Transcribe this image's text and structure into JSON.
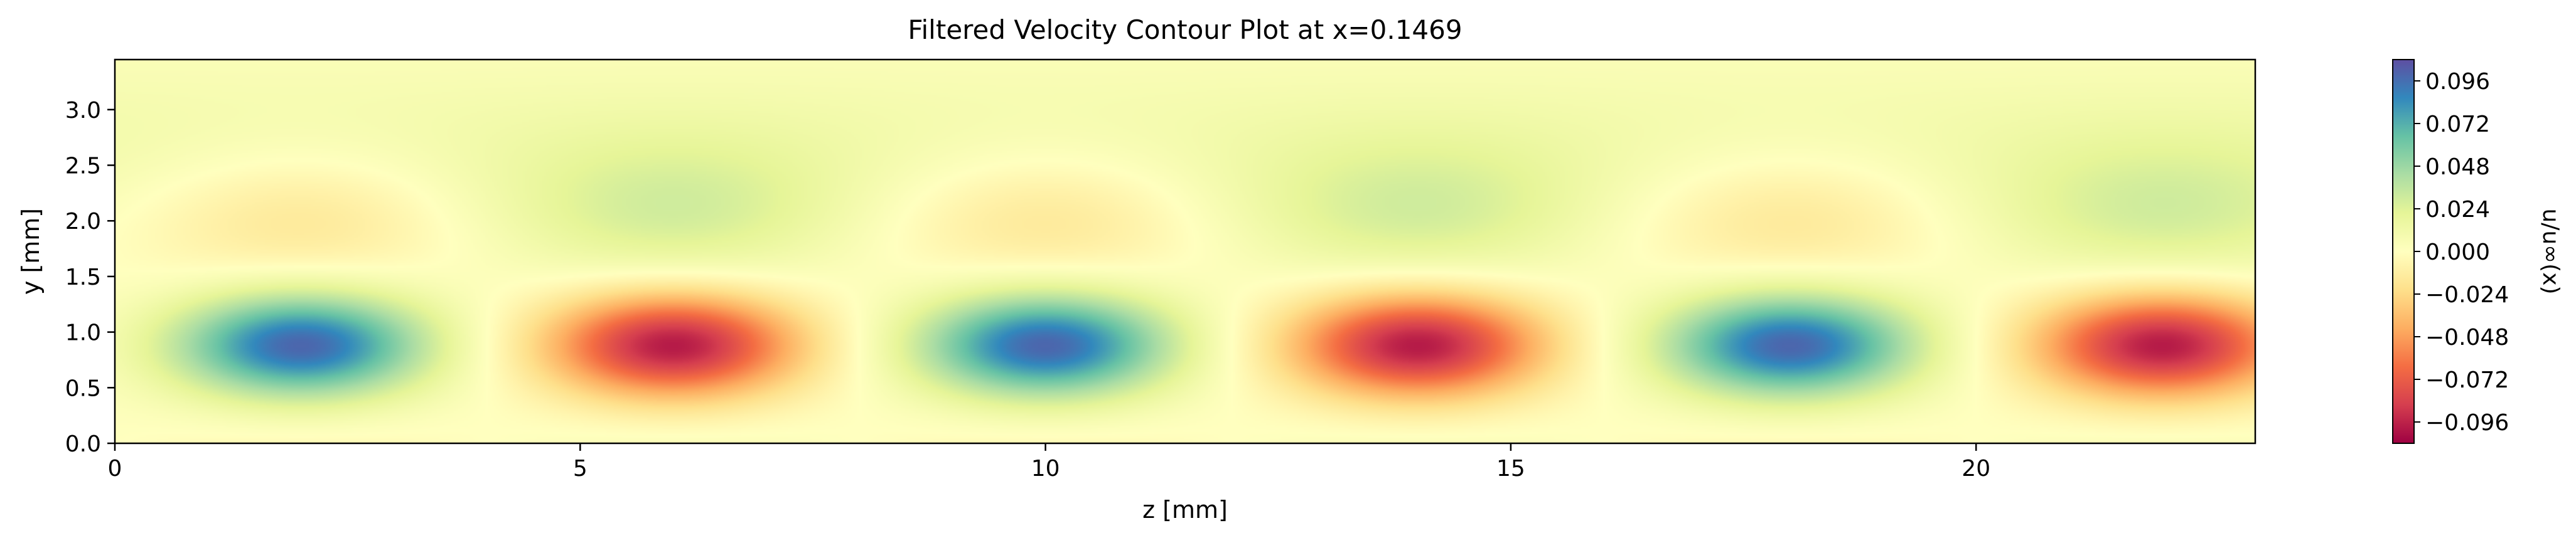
{
  "chart_data": {
    "type": "heatmap",
    "title": "Filtered Velocity Contour Plot at x=0.1469",
    "xlabel": "z [mm]",
    "ylabel": "y [mm]",
    "xlim": [
      0,
      23
    ],
    "ylim": [
      0,
      3.45
    ],
    "x_ticks": [
      0,
      5,
      10,
      15,
      20
    ],
    "x_tick_labels": [
      "0",
      "5",
      "10",
      "15",
      "20"
    ],
    "y_ticks": [
      0.0,
      0.5,
      1.0,
      1.5,
      2.0,
      2.5,
      3.0
    ],
    "y_tick_labels": [
      "0.0",
      "0.5",
      "1.0",
      "1.5",
      "2.0",
      "2.5",
      "3.0"
    ],
    "colormap": "Spectral",
    "colormap_stops": [
      "#9e0142",
      "#d53e4f",
      "#f46d43",
      "#fdae61",
      "#fee08b",
      "#ffffbf",
      "#e6f598",
      "#abdda4",
      "#66c2a5",
      "#3288bd",
      "#5e4fa2"
    ],
    "value_range": [
      -0.108,
      0.108
    ],
    "structures": [
      {
        "sign": "positive",
        "z_center": 2.0,
        "y_center": 0.88,
        "peak": 0.1
      },
      {
        "sign": "negative",
        "z_center": 6.0,
        "y_center": 0.88,
        "peak": -0.1
      },
      {
        "sign": "positive",
        "z_center": 10.0,
        "y_center": 0.88,
        "peak": 0.1
      },
      {
        "sign": "negative",
        "z_center": 14.0,
        "y_center": 0.88,
        "peak": -0.1
      },
      {
        "sign": "positive",
        "z_center": 18.0,
        "y_center": 0.88,
        "peak": 0.1
      },
      {
        "sign": "negative",
        "z_center": 22.0,
        "y_center": 0.88,
        "peak": -0.1
      }
    ],
    "colorbar": {
      "label": "u/u∞(x)",
      "ticks": [
        0.096,
        0.072,
        0.048,
        0.024,
        0.0,
        -0.024,
        -0.048,
        -0.072,
        -0.096
      ],
      "tick_labels": [
        "0.096",
        "0.072",
        "0.048",
        "0.024",
        "0.000",
        "−0.024",
        "−0.048",
        "−0.072",
        "−0.096"
      ]
    },
    "grid": false
  }
}
